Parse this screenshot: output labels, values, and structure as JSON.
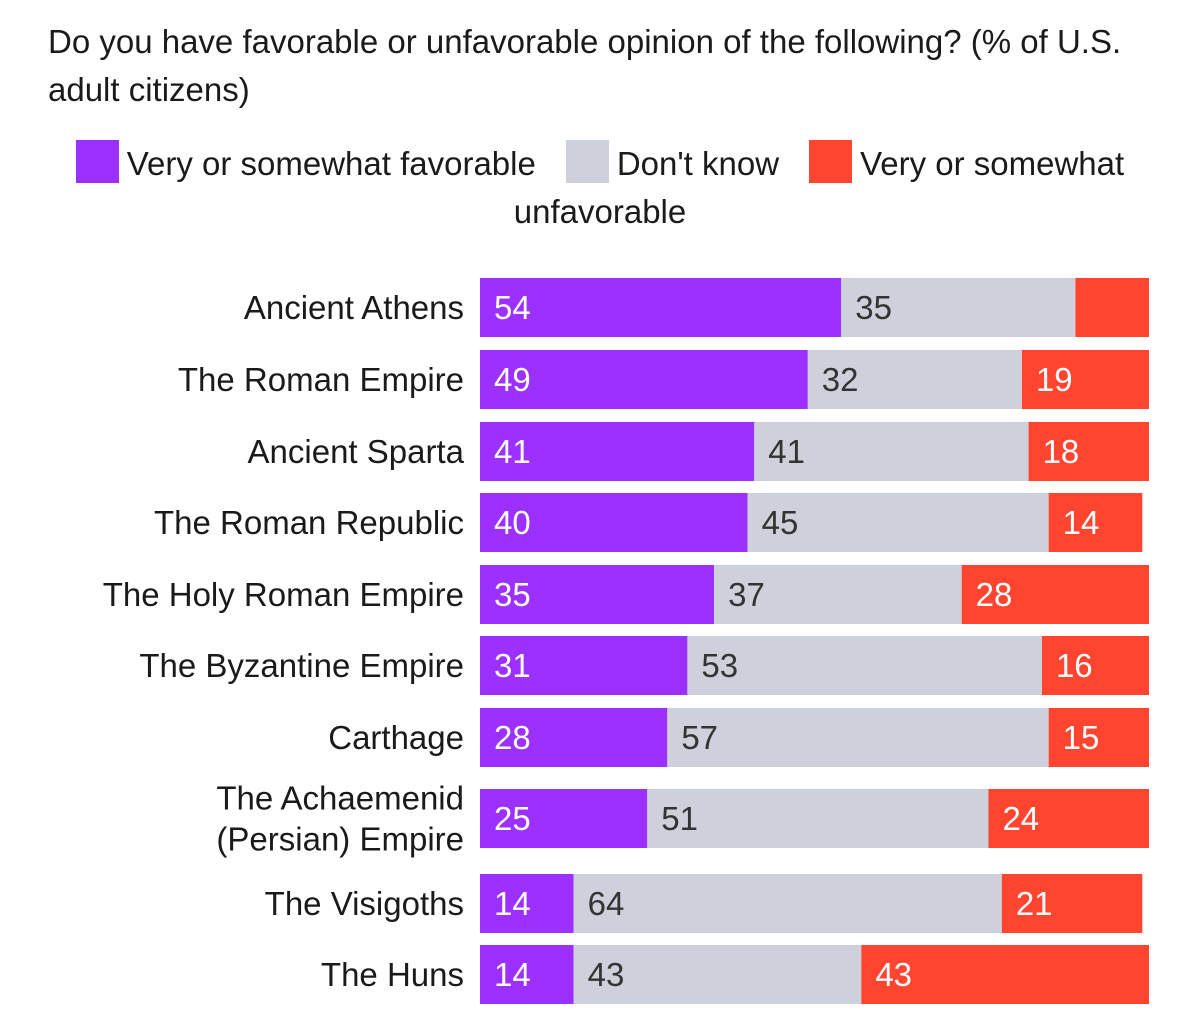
{
  "chart_data": {
    "type": "bar",
    "orientation": "horizontal",
    "stacked": true,
    "title": "Do you have favorable or unfavorable opinion of the following? (% of U.S. adult citizens)",
    "categories": [
      "Ancient Athens",
      "The Roman Empire",
      "Ancient Sparta",
      "The Roman Republic",
      "The Holy Roman Empire",
      "The Byzantine Empire",
      "Carthage",
      "The Achaemenid (Persian) Empire",
      "The Visigoths",
      "The Huns"
    ],
    "category_lines": [
      [
        "Ancient Athens"
      ],
      [
        "The Roman Empire"
      ],
      [
        "Ancient Sparta"
      ],
      [
        "The Roman Republic"
      ],
      [
        "The Holy Roman Empire"
      ],
      [
        "The Byzantine Empire"
      ],
      [
        "Carthage"
      ],
      [
        "The Achaemenid",
        "(Persian) Empire"
      ],
      [
        "The Visigoths"
      ],
      [
        "The Huns"
      ]
    ],
    "series": [
      {
        "name": "Very or somewhat favorable",
        "color": "#9b30ff",
        "label_color": "#ffffff",
        "values": [
          54,
          49,
          41,
          40,
          35,
          31,
          28,
          25,
          14,
          14
        ],
        "labels": [
          "54",
          "49",
          "41",
          "40",
          "35",
          "31",
          "28",
          "25",
          "14",
          "14"
        ]
      },
      {
        "name": "Don't know",
        "color": "#ced1db",
        "label_color": "#333333",
        "values": [
          35,
          32,
          41,
          45,
          37,
          53,
          57,
          51,
          64,
          43
        ],
        "labels": [
          "35",
          "32",
          "41",
          "45",
          "37",
          "53",
          "57",
          "51",
          "64",
          "43"
        ]
      },
      {
        "name": "Very or somewhat unfavorable",
        "color": "#ff4530",
        "label_color": "#ffffff",
        "values": [
          11,
          19,
          18,
          14,
          28,
          16,
          15,
          24,
          21,
          43
        ],
        "labels": [
          "",
          "19",
          "18",
          "14",
          "28",
          "16",
          "15",
          "24",
          "21",
          "43"
        ]
      }
    ],
    "xlim": [
      0,
      100
    ],
    "grid": false,
    "legend_position": "top"
  }
}
